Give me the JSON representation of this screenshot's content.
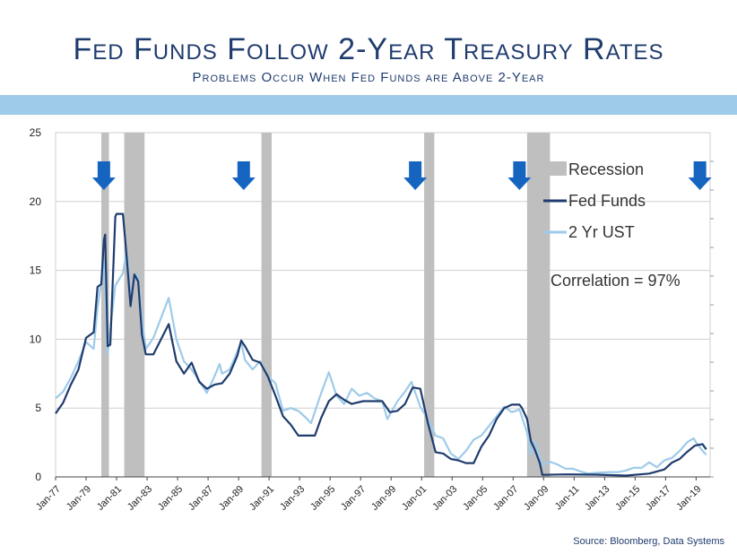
{
  "header": {
    "title": "Fed Funds Follow 2-Year Treasury Rates",
    "subtitle": "Problems Occur When Fed Funds are Above 2-Year"
  },
  "footer": {
    "source": "Source:  Bloomberg, Data Systems"
  },
  "colors": {
    "title": "#1f3c6e",
    "band": "#9ecbea",
    "recession": "#bfbfbf",
    "fed_funds": "#1f3c6e",
    "ust_2yr": "#9ecbea",
    "arrow": "#1565c0"
  },
  "chart_data": {
    "type": "line",
    "title": "",
    "xlabel": "",
    "ylabel": "",
    "ylim": [
      0,
      25
    ],
    "xlim": [
      "1977-01",
      "2019-12"
    ],
    "yticks": [
      0,
      5,
      10,
      15,
      20,
      25
    ],
    "xticks": [
      "Jan-77",
      "Jan-79",
      "Jan-81",
      "Jan-83",
      "Jan-85",
      "Jan-87",
      "Jan-89",
      "Jan-91",
      "Jan-93",
      "Jan-95",
      "Jan-97",
      "Jan-99",
      "Jan-01",
      "Jan-03",
      "Jan-05",
      "Jan-07",
      "Jan-09",
      "Jan-11",
      "Jan-13",
      "Jan-15",
      "Jan-17",
      "Jan-19"
    ],
    "grid": "horizontal",
    "legend_position": "top-right",
    "legend": [
      "Recession",
      "Fed Funds",
      "2 Yr UST"
    ],
    "annotation": "Correlation = 97%",
    "recessions": [
      [
        "1980-01",
        "1980-07"
      ],
      [
        "1981-07",
        "1982-11"
      ],
      [
        "1990-07",
        "1991-03"
      ],
      [
        "2001-03",
        "2001-11"
      ],
      [
        "2007-12",
        "2009-06"
      ]
    ],
    "arrows": [
      "1980-03",
      "1989-05",
      "2000-08",
      "2007-06",
      "2019-04"
    ],
    "series": [
      {
        "name": "Fed Funds",
        "points": [
          [
            "1977-01",
            4.6
          ],
          [
            "1977-07",
            5.4
          ],
          [
            "1978-01",
            6.7
          ],
          [
            "1978-07",
            7.8
          ],
          [
            "1979-01",
            10.1
          ],
          [
            "1979-07",
            10.5
          ],
          [
            "1979-10",
            13.8
          ],
          [
            "1980-01",
            14.0
          ],
          [
            "1980-03",
            17.2
          ],
          [
            "1980-04",
            17.6
          ],
          [
            "1980-06",
            9.5
          ],
          [
            "1980-08",
            9.6
          ],
          [
            "1980-12",
            18.9
          ],
          [
            "1981-01",
            19.1
          ],
          [
            "1981-06",
            19.1
          ],
          [
            "1981-09",
            15.9
          ],
          [
            "1981-12",
            12.4
          ],
          [
            "1982-03",
            14.7
          ],
          [
            "1982-06",
            14.2
          ],
          [
            "1982-09",
            10.3
          ],
          [
            "1982-12",
            8.9
          ],
          [
            "1983-06",
            8.9
          ],
          [
            "1984-06",
            11.1
          ],
          [
            "1984-12",
            8.4
          ],
          [
            "1985-06",
            7.5
          ],
          [
            "1985-12",
            8.3
          ],
          [
            "1986-06",
            6.9
          ],
          [
            "1986-12",
            6.4
          ],
          [
            "1987-06",
            6.7
          ],
          [
            "1987-12",
            6.8
          ],
          [
            "1988-06",
            7.5
          ],
          [
            "1988-12",
            8.8
          ],
          [
            "1989-03",
            9.9
          ],
          [
            "1989-06",
            9.5
          ],
          [
            "1989-12",
            8.5
          ],
          [
            "1990-06",
            8.3
          ],
          [
            "1990-12",
            7.3
          ],
          [
            "1991-06",
            5.9
          ],
          [
            "1991-12",
            4.4
          ],
          [
            "1992-06",
            3.8
          ],
          [
            "1992-12",
            3.0
          ],
          [
            "1993-06",
            3.0
          ],
          [
            "1994-01",
            3.0
          ],
          [
            "1994-06",
            4.3
          ],
          [
            "1994-12",
            5.5
          ],
          [
            "1995-06",
            6.0
          ],
          [
            "1995-12",
            5.6
          ],
          [
            "1996-06",
            5.3
          ],
          [
            "1997-03",
            5.5
          ],
          [
            "1998-06",
            5.5
          ],
          [
            "1998-12",
            4.7
          ],
          [
            "1999-06",
            4.8
          ],
          [
            "1999-12",
            5.3
          ],
          [
            "2000-06",
            6.5
          ],
          [
            "2000-12",
            6.4
          ],
          [
            "2001-06",
            3.9
          ],
          [
            "2001-12",
            1.8
          ],
          [
            "2002-06",
            1.7
          ],
          [
            "2002-12",
            1.3
          ],
          [
            "2003-06",
            1.2
          ],
          [
            "2003-12",
            1.0
          ],
          [
            "2004-06",
            1.0
          ],
          [
            "2004-12",
            2.2
          ],
          [
            "2005-06",
            3.0
          ],
          [
            "2005-12",
            4.2
          ],
          [
            "2006-06",
            5.0
          ],
          [
            "2006-12",
            5.25
          ],
          [
            "2007-06",
            5.25
          ],
          [
            "2007-08",
            5.0
          ],
          [
            "2007-12",
            4.2
          ],
          [
            "2008-03",
            2.6
          ],
          [
            "2008-06",
            2.0
          ],
          [
            "2008-10",
            1.0
          ],
          [
            "2008-12",
            0.15
          ],
          [
            "2010-06",
            0.18
          ],
          [
            "2012-06",
            0.16
          ],
          [
            "2014-06",
            0.1
          ],
          [
            "2015-12",
            0.24
          ],
          [
            "2016-12",
            0.54
          ],
          [
            "2017-06",
            1.04
          ],
          [
            "2017-12",
            1.3
          ],
          [
            "2018-06",
            1.82
          ],
          [
            "2018-12",
            2.27
          ],
          [
            "2019-06",
            2.38
          ],
          [
            "2019-09",
            2.0
          ]
        ]
      },
      {
        "name": "2 Yr UST",
        "points": [
          [
            "1977-01",
            5.7
          ],
          [
            "1977-07",
            6.2
          ],
          [
            "1978-01",
            7.2
          ],
          [
            "1978-07",
            8.4
          ],
          [
            "1979-01",
            9.8
          ],
          [
            "1979-07",
            9.3
          ],
          [
            "1979-10",
            12.3
          ],
          [
            "1980-02",
            14.8
          ],
          [
            "1980-03",
            15.6
          ],
          [
            "1980-06",
            8.9
          ],
          [
            "1980-09",
            11.5
          ],
          [
            "1980-12",
            13.9
          ],
          [
            "1981-06",
            14.8
          ],
          [
            "1981-09",
            16.5
          ],
          [
            "1981-12",
            13.2
          ],
          [
            "1982-03",
            14.3
          ],
          [
            "1982-06",
            14.7
          ],
          [
            "1982-09",
            11.4
          ],
          [
            "1982-12",
            9.3
          ],
          [
            "1983-06",
            10.1
          ],
          [
            "1984-06",
            13.0
          ],
          [
            "1984-12",
            10.0
          ],
          [
            "1985-06",
            8.4
          ],
          [
            "1985-12",
            7.8
          ],
          [
            "1986-06",
            7.0
          ],
          [
            "1986-12",
            6.1
          ],
          [
            "1987-06",
            7.3
          ],
          [
            "1987-10",
            8.2
          ],
          [
            "1987-12",
            7.5
          ],
          [
            "1988-06",
            7.8
          ],
          [
            "1988-12",
            9.1
          ],
          [
            "1989-03",
            9.8
          ],
          [
            "1989-06",
            8.5
          ],
          [
            "1989-12",
            7.8
          ],
          [
            "1990-06",
            8.4
          ],
          [
            "1990-12",
            7.3
          ],
          [
            "1991-06",
            6.8
          ],
          [
            "1991-12",
            4.8
          ],
          [
            "1992-06",
            5.0
          ],
          [
            "1992-12",
            4.8
          ],
          [
            "1993-06",
            4.3
          ],
          [
            "1993-10",
            3.9
          ],
          [
            "1994-06",
            6.1
          ],
          [
            "1994-12",
            7.6
          ],
          [
            "1995-06",
            5.9
          ],
          [
            "1995-12",
            5.3
          ],
          [
            "1996-06",
            6.4
          ],
          [
            "1996-12",
            5.9
          ],
          [
            "1997-06",
            6.1
          ],
          [
            "1997-12",
            5.7
          ],
          [
            "1998-06",
            5.5
          ],
          [
            "1998-10",
            4.2
          ],
          [
            "1999-06",
            5.5
          ],
          [
            "1999-12",
            6.2
          ],
          [
            "2000-05",
            6.9
          ],
          [
            "2000-12",
            5.1
          ],
          [
            "2001-06",
            4.2
          ],
          [
            "2001-12",
            3.0
          ],
          [
            "2002-06",
            2.8
          ],
          [
            "2002-12",
            1.7
          ],
          [
            "2003-06",
            1.3
          ],
          [
            "2003-12",
            1.9
          ],
          [
            "2004-06",
            2.7
          ],
          [
            "2004-12",
            3.0
          ],
          [
            "2005-06",
            3.7
          ],
          [
            "2005-12",
            4.4
          ],
          [
            "2006-06",
            5.1
          ],
          [
            "2006-12",
            4.7
          ],
          [
            "2007-06",
            4.9
          ],
          [
            "2007-12",
            3.2
          ],
          [
            "2008-03",
            1.6
          ],
          [
            "2008-06",
            2.6
          ],
          [
            "2008-12",
            0.9
          ],
          [
            "2009-06",
            1.1
          ],
          [
            "2009-12",
            0.9
          ],
          [
            "2010-06",
            0.6
          ],
          [
            "2010-12",
            0.6
          ],
          [
            "2011-06",
            0.4
          ],
          [
            "2011-12",
            0.25
          ],
          [
            "2012-06",
            0.3
          ],
          [
            "2013-06",
            0.35
          ],
          [
            "2013-12",
            0.35
          ],
          [
            "2014-06",
            0.47
          ],
          [
            "2014-12",
            0.67
          ],
          [
            "2015-06",
            0.65
          ],
          [
            "2015-12",
            1.06
          ],
          [
            "2016-06",
            0.7
          ],
          [
            "2016-12",
            1.2
          ],
          [
            "2017-06",
            1.38
          ],
          [
            "2017-12",
            1.89
          ],
          [
            "2018-06",
            2.52
          ],
          [
            "2018-11",
            2.8
          ],
          [
            "2019-01",
            2.5
          ],
          [
            "2019-06",
            1.9
          ],
          [
            "2019-09",
            1.6
          ]
        ]
      }
    ]
  }
}
